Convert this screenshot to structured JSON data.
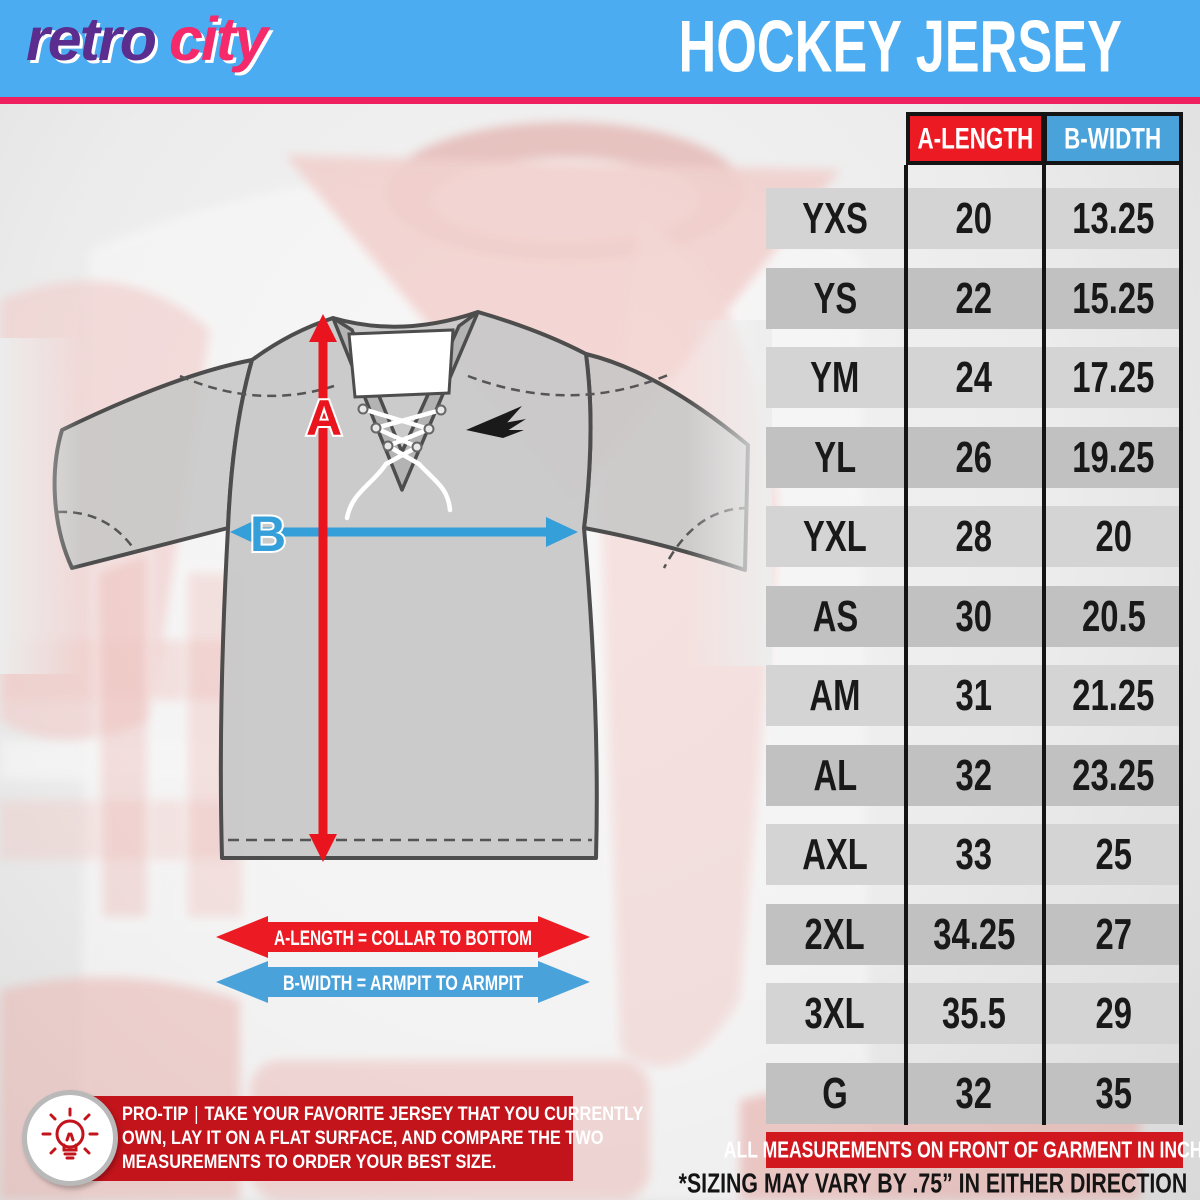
{
  "brand": {
    "retro": "retro",
    "city": "city"
  },
  "header": {
    "title": "HOCKEY JERSEY"
  },
  "diagram": {
    "label_a": "A",
    "label_b": "B",
    "legend_a": "A-LENGTH = COLLAR TO BOTTOM",
    "legend_b": "B-WIDTH = ARMPIT TO ARMPIT"
  },
  "table": {
    "columns": [
      "A-LENGTH",
      "B-WIDTH"
    ],
    "rows": [
      {
        "size": "YXS",
        "a": "20",
        "b": "13.25"
      },
      {
        "size": "YS",
        "a": "22",
        "b": "15.25"
      },
      {
        "size": "YM",
        "a": "24",
        "b": "17.25"
      },
      {
        "size": "YL",
        "a": "26",
        "b": "19.25"
      },
      {
        "size": "YXL",
        "a": "28",
        "b": "20"
      },
      {
        "size": "AS",
        "a": "30",
        "b": "20.5"
      },
      {
        "size": "AM",
        "a": "31",
        "b": "21.25"
      },
      {
        "size": "AL",
        "a": "32",
        "b": "23.25"
      },
      {
        "size": "AXL",
        "a": "33",
        "b": "25"
      },
      {
        "size": "2XL",
        "a": "34.25",
        "b": "27"
      },
      {
        "size": "3XL",
        "a": "35.5",
        "b": "29"
      },
      {
        "size": "G",
        "a": "32",
        "b": "35"
      }
    ]
  },
  "protip": {
    "label": "PRO-TIP",
    "separator": "|",
    "lines": [
      "TAKE YOUR FAVORITE JERSEY THAT YOU CURRENTLY",
      "OWN, LAY IT ON A FLAT SURFACE, AND COMPARE THE TWO",
      "MEASUREMENTS TO ORDER YOUR BEST SIZE."
    ]
  },
  "footer": {
    "bar": "ALL MEASUREMENTS ON FRONT OF GARMENT IN INCHES",
    "note": "*SIZING MAY VARY BY .75” IN EITHER DIRECTION"
  },
  "colors": {
    "header_blue": "#4BACF1",
    "divider_pink": "#EE2060",
    "logo_purple": "#5B2D8E",
    "logo_pink": "#F42A6B",
    "table_red": "#EC1B23",
    "table_blue": "#4AA2DB",
    "arrow_red": "#E9141D",
    "arrow_blue": "#359FD9",
    "bar_red": "#D2181F",
    "protip_red": "#C3141C"
  }
}
